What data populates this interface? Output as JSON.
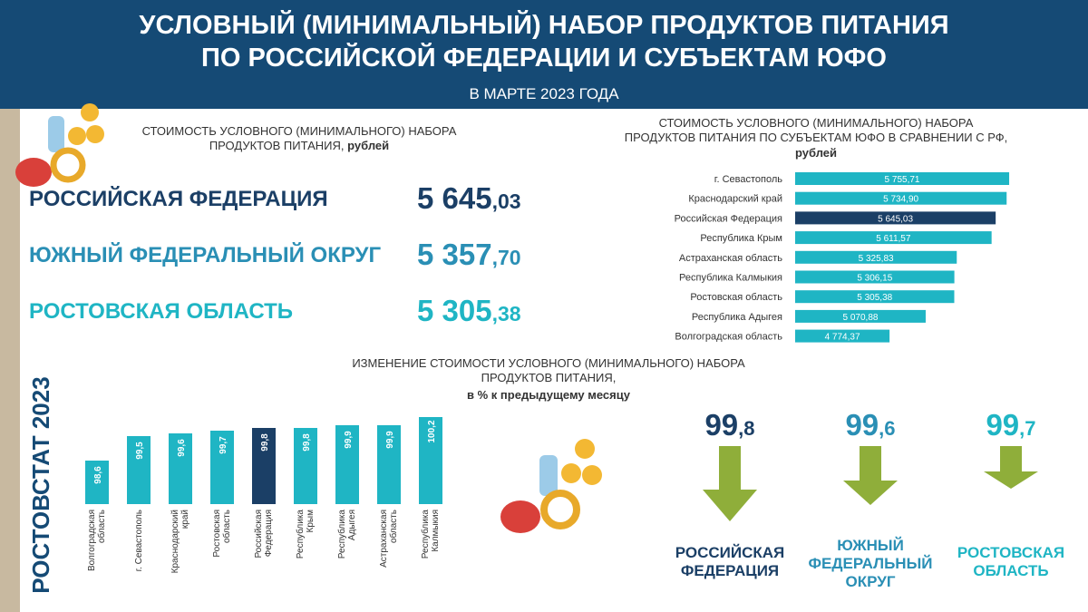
{
  "header": {
    "title_line1": "УСЛОВНЫЙ (МИНИМАЛЬНЫЙ) НАБОР ПРОДУКТОВ ПИТАНИЯ",
    "title_line2": "ПО РОССИЙСКОЙ ФЕДЕРАЦИИ И СУБЪЕКТАМ ЮФО",
    "subtitle": "В МАРТЕ 2023 ГОДА"
  },
  "side_label": "РОСТОВСТАТ 2023",
  "cost_block": {
    "title": "СТОИМОСТЬ УСЛОВНОГО (МИНИМАЛЬНОГО) НАБОРА\nПРОДУКТОВ ПИТАНИЯ,",
    "unit": "рублей",
    "rows": [
      {
        "name": "РОССИЙСКАЯ ФЕДЕРАЦИЯ",
        "main": "5 645",
        "fraction": ",03",
        "color": "#1b3f66"
      },
      {
        "name": "ЮЖНЫЙ ФЕДЕРАЛЬНЫЙ ОКРУГ",
        "main": "5 357",
        "fraction": ",70",
        "color": "#2a8fb5"
      },
      {
        "name": "РОСТОВСКАЯ ОБЛАСТЬ",
        "main": "5 305",
        "fraction": ",38",
        "color": "#1fb5c4"
      }
    ]
  },
  "change_indicators": [
    {
      "main": "99",
      "fraction": ",8",
      "label": "РОССИЙСКАЯ\nФЕДЕРАЦИЯ",
      "color": "#1b3f66"
    },
    {
      "main": "99",
      "fraction": ",6",
      "label": "ЮЖНЫЙ\nФЕДЕРАЛЬНЫЙ\nОКРУГ",
      "color": "#2a8fb5"
    },
    {
      "main": "99",
      "fraction": ",7",
      "label": "РОСТОВСКАЯ\nОБЛАСТЬ",
      "color": "#1fb5c4"
    }
  ],
  "chart_data": [
    {
      "type": "hbar",
      "title": "СТОИМОСТЬ УСЛОВНОГО (МИНИМАЛЬНОГО) НАБОРА\nПРОДУКТОВ ПИТАНИЯ ПО СУБЪЕКТАМ ЮФО В СРАВНЕНИИ С РФ,",
      "subtitle": "рублей",
      "categories": [
        "г. Севастополь",
        "Краснодарский край",
        "Российская Федерация",
        "Республика Крым",
        "Астраханская область",
        "Республика Калмыкия",
        "Ростовская область",
        "Республика Адыгея",
        "Волгоградская область"
      ],
      "values": [
        5755.71,
        5734.9,
        5645.03,
        5611.57,
        5325.83,
        5306.15,
        5305.38,
        5070.88,
        4774.37
      ],
      "value_labels": [
        "5 755,71",
        "5 734,90",
        "5 645,03",
        "5 611,57",
        "5 325,83",
        "5 306,15",
        "5 305,38",
        "5 070,88",
        "4 774,37"
      ],
      "colors": [
        "#1fb5c4",
        "#1fb5c4",
        "#1b3f66",
        "#1fb5c4",
        "#1fb5c4",
        "#1fb5c4",
        "#1fb5c4",
        "#1fb5c4",
        "#1fb5c4"
      ],
      "xlim": [
        4000,
        5800
      ]
    },
    {
      "type": "bar",
      "title": "ИЗМЕНЕНИЕ СТОИМОСТИ УСЛОВНОГО (МИНИМАЛЬНОГО) НАБОРА\nПРОДУКТОВ ПИТАНИЯ,",
      "subtitle": "в % к предыдущему месяцу",
      "categories": [
        "Волгоградская\nобласть",
        "г. Севастополь",
        "Краснодарский\nкрай",
        "Ростовская\nобласть",
        "Российская\nФедерация",
        "Республика\nКрым",
        "Республика\nАдыгея",
        "Астраханская\nобласть",
        "Республика\nКалмыкия"
      ],
      "values": [
        98.6,
        99.5,
        99.6,
        99.7,
        99.8,
        99.8,
        99.9,
        99.9,
        100.2
      ],
      "value_labels": [
        "98,6",
        "99,5",
        "99,6",
        "99,7",
        "99,8",
        "99,8",
        "99,9",
        "99,9",
        "100,2"
      ],
      "colors": [
        "#1fb5c4",
        "#1fb5c4",
        "#1fb5c4",
        "#1fb5c4",
        "#1b3f66",
        "#1fb5c4",
        "#1fb5c4",
        "#1fb5c4",
        "#1fb5c4"
      ],
      "ylim": [
        97,
        100.5
      ]
    }
  ]
}
